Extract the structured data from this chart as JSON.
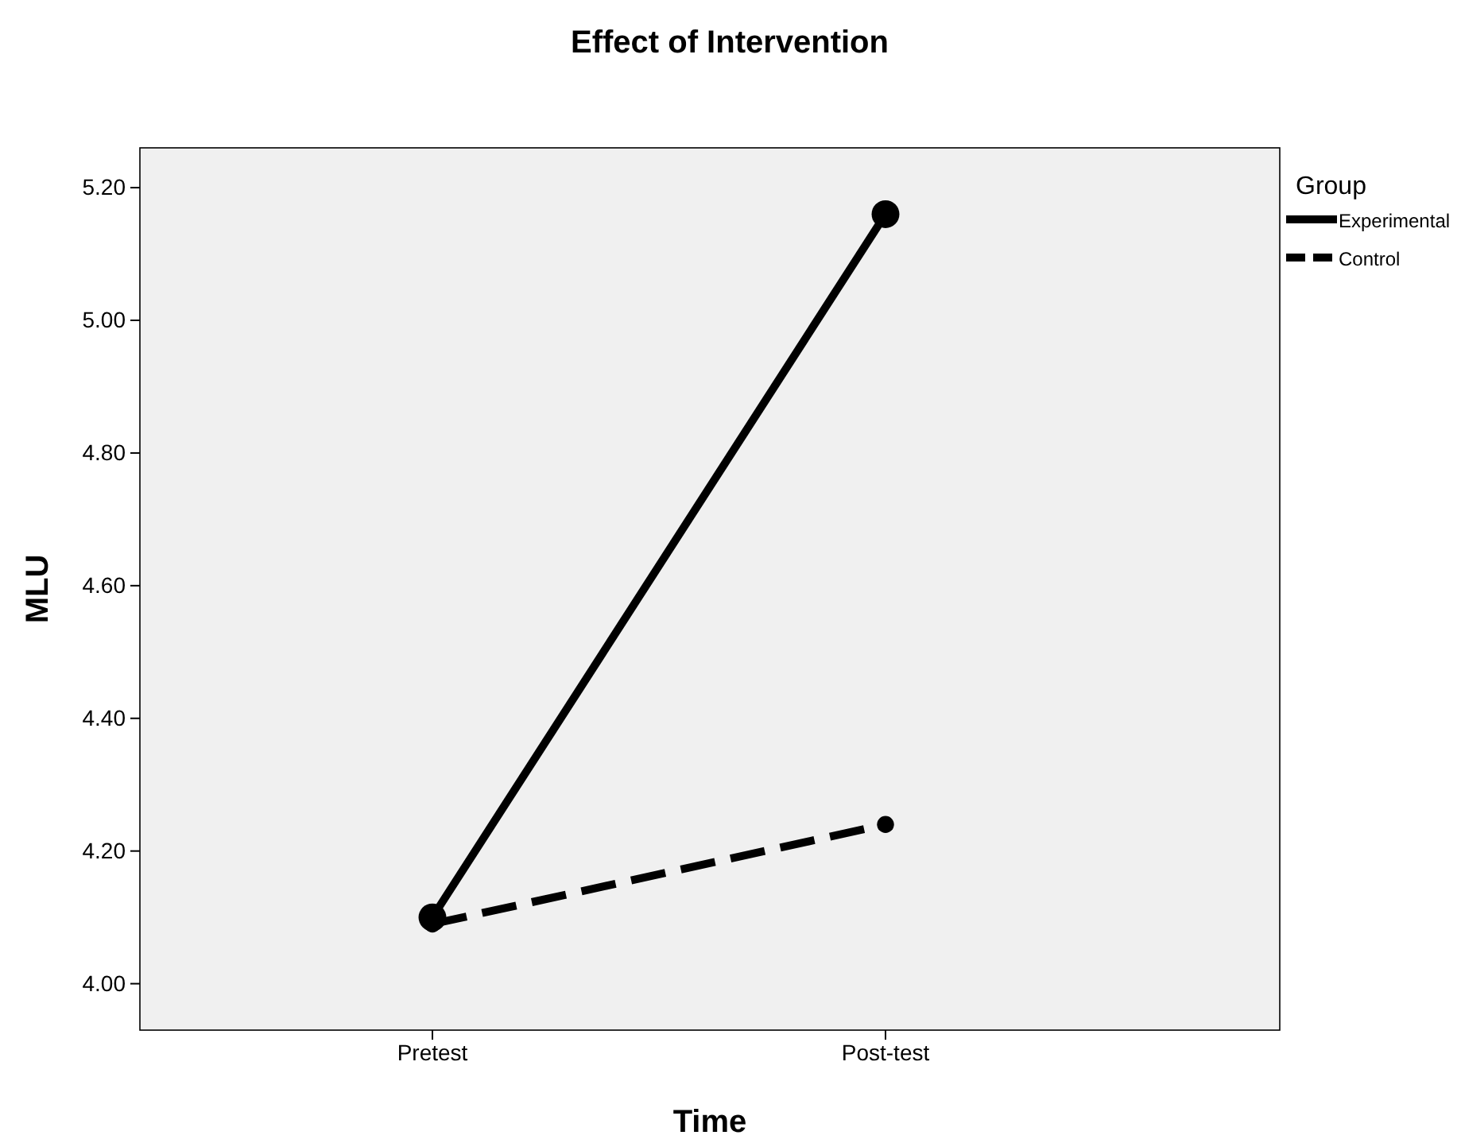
{
  "chart_data": {
    "type": "line",
    "title": "Effect of Intervention",
    "xlabel": "Time",
    "ylabel": "MLU",
    "legend_title": "Group",
    "categories": [
      "Pretest",
      "Post-test"
    ],
    "series": [
      {
        "name": "Experimental",
        "color": "#000000",
        "values": [
          4.1,
          5.16
        ],
        "line_style": "solid"
      },
      {
        "name": "Control",
        "color": "#000000",
        "values": [
          4.09,
          4.24
        ],
        "line_style": "dashed"
      }
    ],
    "ylim": [
      3.93,
      5.26
    ],
    "yticks": [
      {
        "value": 4.0,
        "label": "4.00"
      },
      {
        "value": 4.2,
        "label": "4.20"
      },
      {
        "value": 4.4,
        "label": "4.40"
      },
      {
        "value": 4.6,
        "label": "4.60"
      },
      {
        "value": 4.8,
        "label": "4.80"
      },
      {
        "value": 5.0,
        "label": "5.00"
      },
      {
        "value": 5.2,
        "label": "5.20"
      }
    ],
    "grid": false,
    "legend": "top right",
    "marker": "circle"
  }
}
